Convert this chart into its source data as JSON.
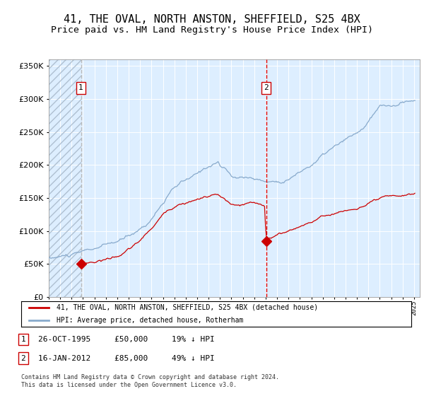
{
  "title": "41, THE OVAL, NORTH ANSTON, SHEFFIELD, S25 4BX",
  "subtitle": "Price paid vs. HM Land Registry's House Price Index (HPI)",
  "title_fontsize": 11,
  "subtitle_fontsize": 9.5,
  "legend_label_red": "41, THE OVAL, NORTH ANSTON, SHEFFIELD, S25 4BX (detached house)",
  "legend_label_blue": "HPI: Average price, detached house, Rotherham",
  "footnote": "Contains HM Land Registry data © Crown copyright and database right 2024.\nThis data is licensed under the Open Government Licence v3.0.",
  "purchase1_date": 1995.82,
  "purchase1_price": 50000,
  "purchase1_label": "1",
  "purchase1_row": "26-OCT-1995     £50,000     19% ↓ HPI",
  "purchase2_date": 2012.04,
  "purchase2_price": 85000,
  "purchase2_label": "2",
  "purchase2_row": "16-JAN-2012     £85,000     49% ↓ HPI",
  "ylim_min": 0,
  "ylim_max": 360000,
  "xlim_min": 1993.0,
  "xlim_max": 2025.5,
  "plot_bg_color": "#ddeeff",
  "hatch_color": "#aabbcc",
  "grid_color": "#ffffff",
  "red_line_color": "#cc0000",
  "blue_line_color": "#88aacc",
  "marker_color": "#cc0000",
  "vline1_color": "#bbbbbb",
  "vline2_color": "#dd0000",
  "outer_bg": "#f0f0f0"
}
